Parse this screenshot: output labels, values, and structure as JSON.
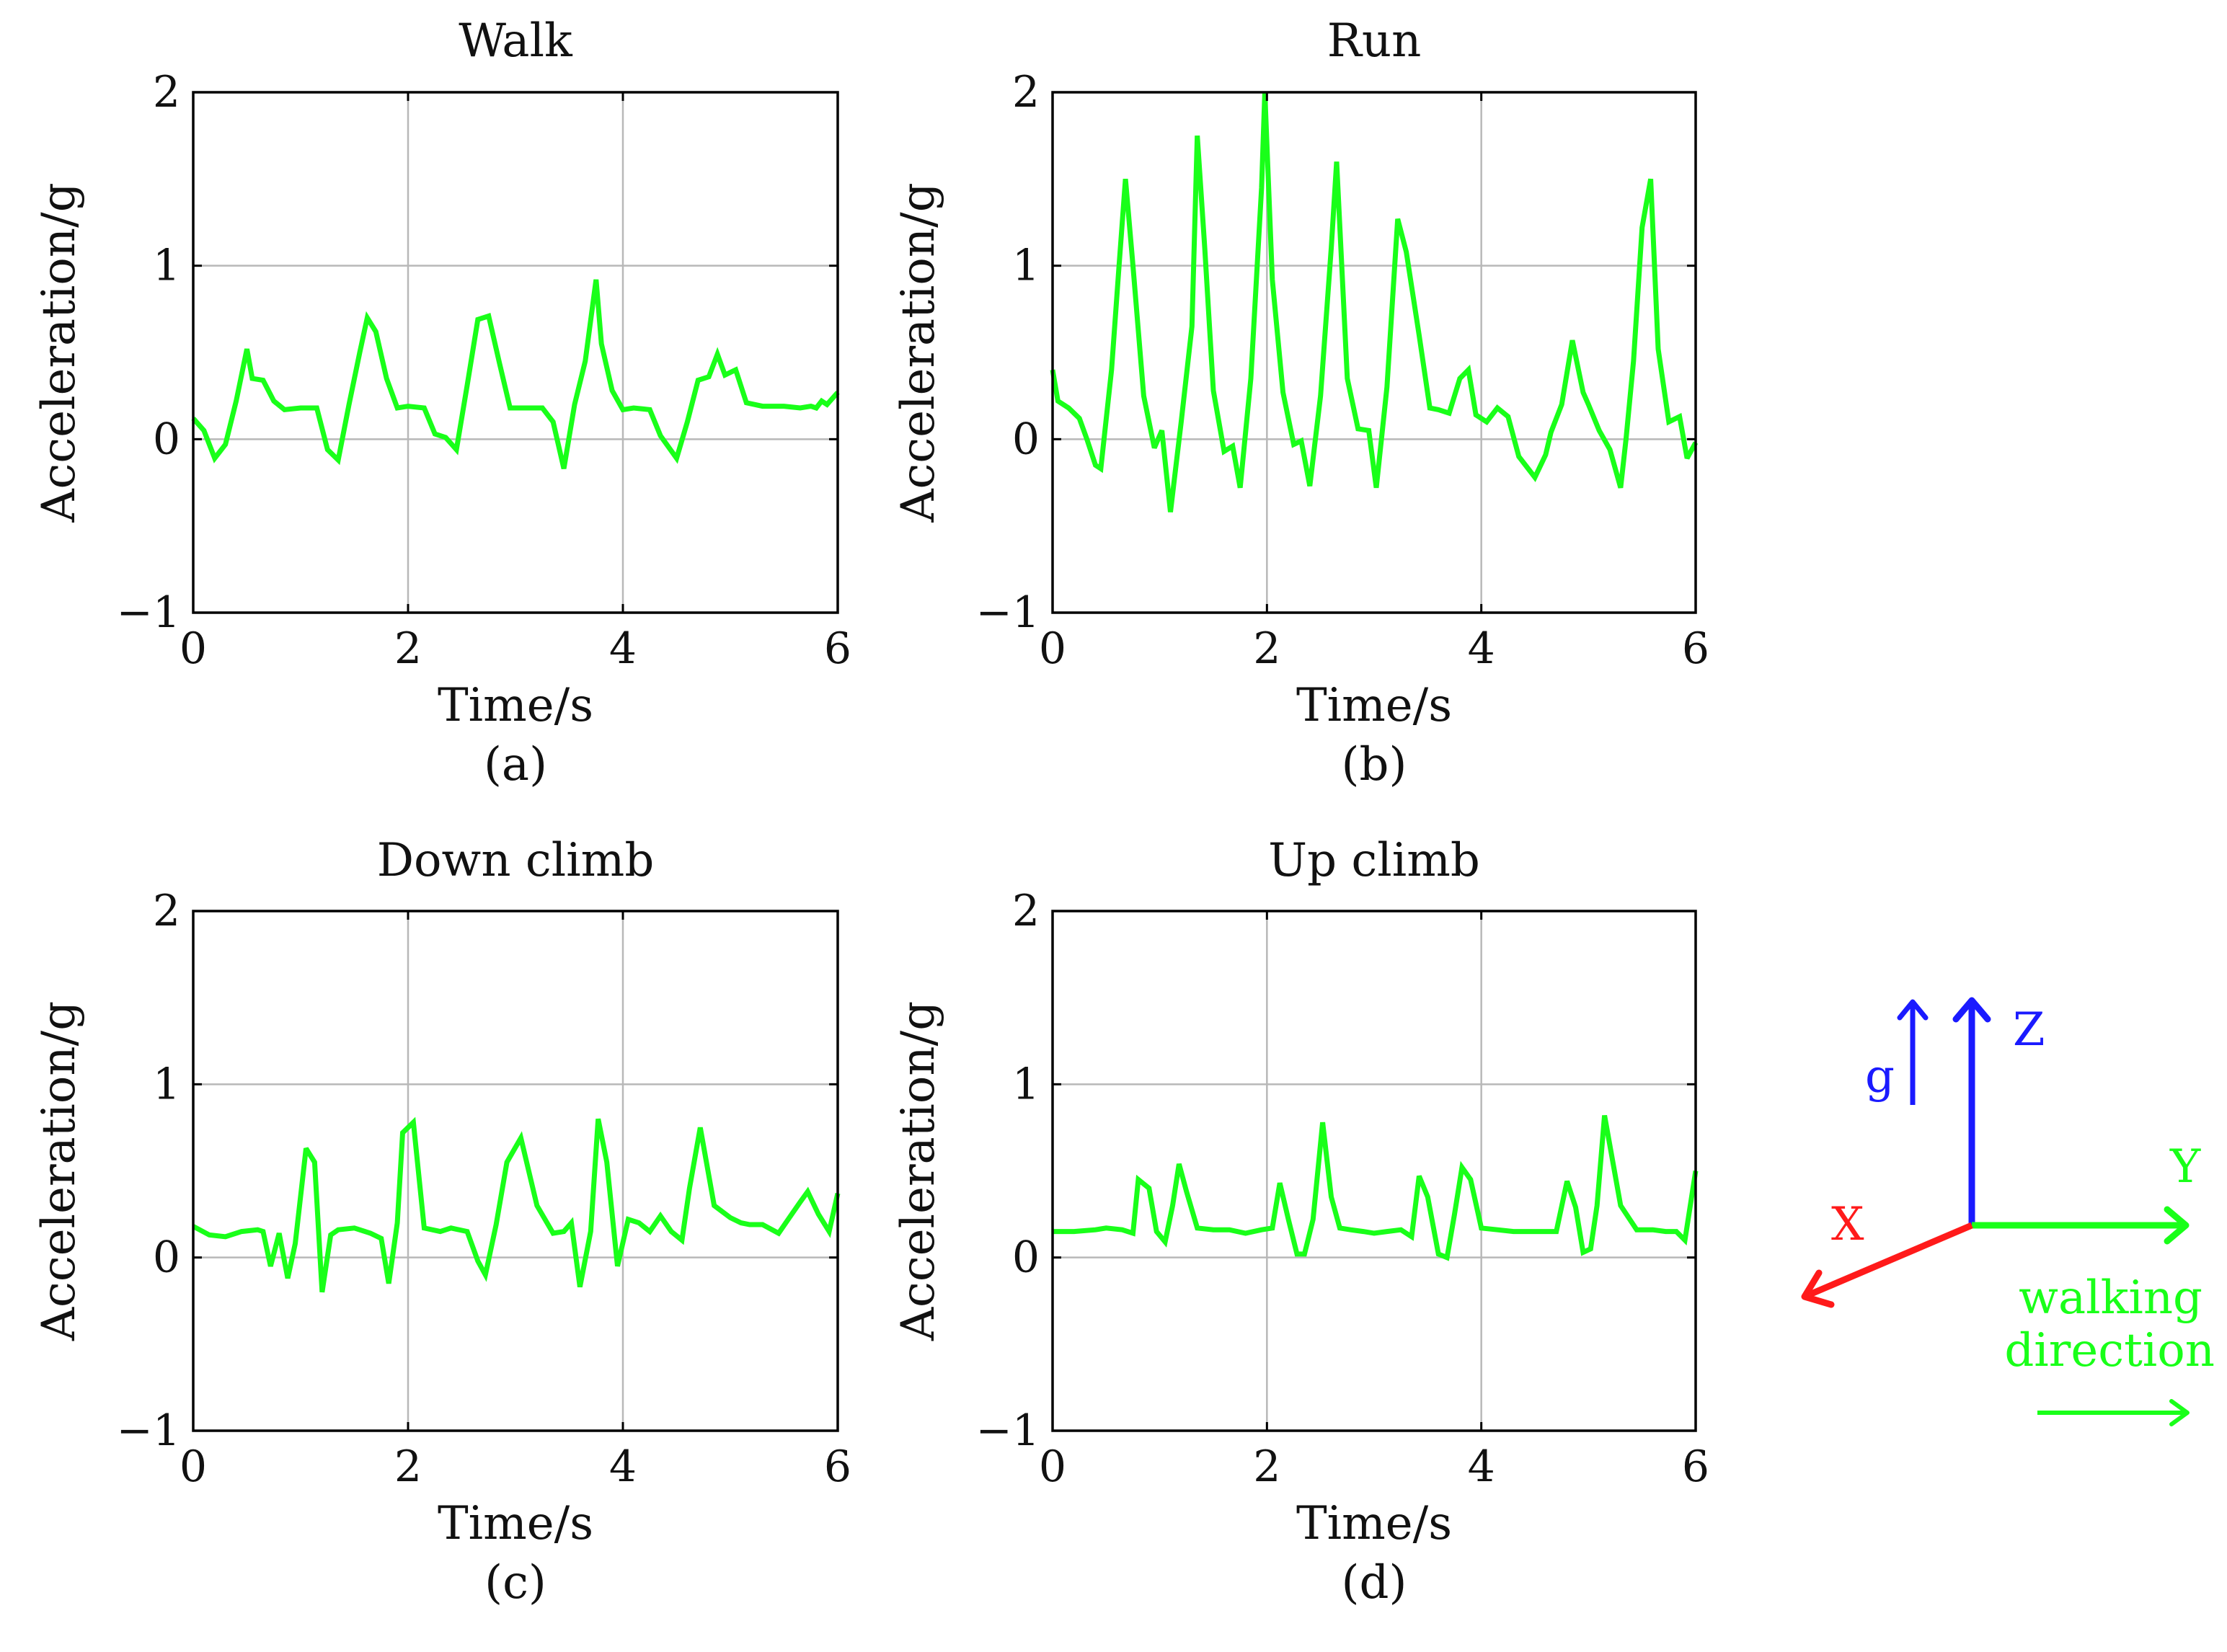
{
  "colors": {
    "series": "#19ff19",
    "grid": "#b8b8b8",
    "axis": "#000000",
    "x_axis_arrow": "#ff1a1a",
    "zg_arrow": "#1a1aff",
    "y_arrow": "#19ff19"
  },
  "chart_data": [
    {
      "type": "line",
      "title": "Walk",
      "caption": "(a)",
      "xlabel": "Time/s",
      "ylabel": "Acceleration/g",
      "xlim": [
        0,
        6
      ],
      "ylim": [
        -1,
        2
      ],
      "xticks": [
        0,
        2,
        4,
        6
      ],
      "yticks": [
        -1,
        0,
        1,
        2
      ],
      "xtick_labels": [
        "0",
        "2",
        "4",
        "6"
      ],
      "ytick_labels": [
        "−1",
        "0",
        "1",
        "2"
      ],
      "grid": true,
      "series": [
        {
          "name": "acceleration",
          "x": [
            0,
            0.1,
            0.2,
            0.3,
            0.4,
            0.5,
            0.55,
            0.65,
            0.75,
            0.85,
            1.0,
            1.15,
            1.25,
            1.35,
            1.45,
            1.55,
            1.62,
            1.7,
            1.8,
            1.9,
            2.0,
            2.15,
            2.25,
            2.35,
            2.45,
            2.55,
            2.65,
            2.75,
            2.85,
            2.95,
            3.1,
            3.25,
            3.35,
            3.45,
            3.55,
            3.65,
            3.75,
            3.8,
            3.9,
            4.0,
            4.1,
            4.25,
            4.35,
            4.5,
            4.6,
            4.7,
            4.8,
            4.88,
            4.95,
            5.05,
            5.15,
            5.3,
            5.5,
            5.65,
            5.75,
            5.8,
            5.85,
            5.9,
            6.0
          ],
          "y": [
            0.12,
            0.05,
            -0.11,
            -0.03,
            0.22,
            0.52,
            0.35,
            0.34,
            0.22,
            0.17,
            0.18,
            0.18,
            -0.06,
            -0.12,
            0.2,
            0.5,
            0.7,
            0.62,
            0.35,
            0.18,
            0.19,
            0.18,
            0.03,
            0.01,
            -0.06,
            0.31,
            0.69,
            0.71,
            0.44,
            0.18,
            0.18,
            0.18,
            0.1,
            -0.17,
            0.2,
            0.45,
            0.92,
            0.55,
            0.28,
            0.17,
            0.18,
            0.17,
            0.02,
            -0.11,
            0.1,
            0.34,
            0.36,
            0.49,
            0.37,
            0.4,
            0.21,
            0.19,
            0.19,
            0.18,
            0.19,
            0.18,
            0.22,
            0.2,
            0.27
          ]
        }
      ]
    },
    {
      "type": "line",
      "title": "Run",
      "caption": "(b)",
      "xlabel": "Time/s",
      "ylabel": "Acceleration/g",
      "xlim": [
        0,
        6
      ],
      "ylim": [
        -1,
        2
      ],
      "xticks": [
        0,
        2,
        4,
        6
      ],
      "yticks": [
        -1,
        0,
        1,
        2
      ],
      "xtick_labels": [
        "0",
        "2",
        "4",
        "6"
      ],
      "ytick_labels": [
        "−1",
        "0",
        "1",
        "2"
      ],
      "grid": true,
      "series": [
        {
          "name": "acceleration",
          "x": [
            0,
            0.05,
            0.15,
            0.25,
            0.32,
            0.4,
            0.45,
            0.55,
            0.62,
            0.68,
            0.75,
            0.85,
            0.95,
            1.02,
            1.1,
            1.2,
            1.3,
            1.35,
            1.42,
            1.5,
            1.6,
            1.68,
            1.75,
            1.85,
            1.95,
            1.98,
            2.05,
            2.15,
            2.25,
            2.32,
            2.4,
            2.5,
            2.6,
            2.65,
            2.75,
            2.85,
            2.95,
            3.02,
            3.12,
            3.22,
            3.3,
            3.42,
            3.52,
            3.6,
            3.7,
            3.8,
            3.88,
            3.95,
            4.05,
            4.15,
            4.25,
            4.35,
            4.5,
            4.6,
            4.65,
            4.75,
            4.85,
            4.95,
            5.0,
            5.1,
            5.2,
            5.3,
            5.35,
            5.42,
            5.5,
            5.58,
            5.65,
            5.75,
            5.85,
            5.92,
            6.0
          ],
          "y": [
            0.4,
            0.22,
            0.18,
            0.12,
            0.0,
            -0.15,
            -0.17,
            0.4,
            1.0,
            1.5,
            1.0,
            0.25,
            -0.05,
            0.05,
            -0.42,
            0.1,
            0.65,
            1.75,
            1.1,
            0.28,
            -0.07,
            -0.04,
            -0.28,
            0.35,
            1.45,
            2.0,
            0.92,
            0.27,
            -0.03,
            -0.01,
            -0.27,
            0.25,
            1.1,
            1.6,
            0.35,
            0.06,
            0.05,
            -0.28,
            0.3,
            1.27,
            1.08,
            0.6,
            0.18,
            0.17,
            0.15,
            0.35,
            0.4,
            0.14,
            0.1,
            0.18,
            0.13,
            -0.1,
            -0.22,
            -0.09,
            0.04,
            0.2,
            0.57,
            0.27,
            0.2,
            0.05,
            -0.06,
            -0.28,
            0.0,
            0.45,
            1.22,
            1.5,
            0.52,
            0.1,
            0.13,
            -0.11,
            -0.02
          ]
        }
      ]
    },
    {
      "type": "line",
      "title": "Down climb",
      "caption": "(c)",
      "xlabel": "Time/s",
      "ylabel": "Acceleration/g",
      "xlim": [
        0,
        6
      ],
      "ylim": [
        -1,
        2
      ],
      "xticks": [
        0,
        2,
        4,
        6
      ],
      "yticks": [
        -1,
        0,
        1,
        2
      ],
      "xtick_labels": [
        "0",
        "2",
        "4",
        "6"
      ],
      "ytick_labels": [
        "−1",
        "0",
        "1",
        "2"
      ],
      "grid": true,
      "series": [
        {
          "name": "acceleration",
          "x": [
            0,
            0.15,
            0.3,
            0.45,
            0.6,
            0.65,
            0.72,
            0.8,
            0.88,
            0.95,
            1.05,
            1.13,
            1.2,
            1.28,
            1.35,
            1.5,
            1.65,
            1.75,
            1.82,
            1.9,
            1.95,
            2.05,
            2.15,
            2.3,
            2.4,
            2.55,
            2.65,
            2.72,
            2.82,
            2.92,
            3.05,
            3.2,
            3.35,
            3.45,
            3.52,
            3.6,
            3.7,
            3.77,
            3.85,
            3.95,
            4.05,
            4.15,
            4.25,
            4.35,
            4.45,
            4.55,
            4.62,
            4.72,
            4.85,
            5.0,
            5.1,
            5.18,
            5.3,
            5.45,
            5.55,
            5.65,
            5.72,
            5.82,
            5.92,
            6.0
          ],
          "y": [
            0.18,
            0.13,
            0.12,
            0.15,
            0.16,
            0.15,
            -0.05,
            0.14,
            -0.12,
            0.08,
            0.63,
            0.55,
            -0.2,
            0.13,
            0.16,
            0.17,
            0.14,
            0.11,
            -0.15,
            0.2,
            0.72,
            0.78,
            0.17,
            0.15,
            0.17,
            0.15,
            -0.02,
            -0.1,
            0.19,
            0.55,
            0.69,
            0.3,
            0.14,
            0.15,
            0.2,
            -0.17,
            0.15,
            0.8,
            0.55,
            -0.05,
            0.22,
            0.2,
            0.15,
            0.24,
            0.15,
            0.1,
            0.4,
            0.75,
            0.3,
            0.23,
            0.2,
            0.19,
            0.19,
            0.14,
            0.23,
            0.32,
            0.38,
            0.25,
            0.15,
            0.37
          ]
        }
      ]
    },
    {
      "type": "line",
      "title": "Up climb",
      "caption": "(d)",
      "xlabel": "Time/s",
      "ylabel": "Acceleration/g",
      "xlim": [
        0,
        6
      ],
      "ylim": [
        -1,
        2
      ],
      "xticks": [
        0,
        2,
        4,
        6
      ],
      "yticks": [
        -1,
        0,
        1,
        2
      ],
      "xtick_labels": [
        "0",
        "2",
        "4",
        "6"
      ],
      "ytick_labels": [
        "−1",
        "0",
        "1",
        "2"
      ],
      "grid": true,
      "series": [
        {
          "name": "acceleration",
          "x": [
            0,
            0.2,
            0.4,
            0.5,
            0.65,
            0.75,
            0.8,
            0.9,
            0.97,
            1.05,
            1.12,
            1.18,
            1.25,
            1.35,
            1.5,
            1.65,
            1.8,
            1.95,
            2.05,
            2.12,
            2.2,
            2.28,
            2.35,
            2.43,
            2.52,
            2.6,
            2.68,
            2.78,
            2.9,
            3.0,
            3.12,
            3.25,
            3.35,
            3.42,
            3.5,
            3.6,
            3.68,
            3.75,
            3.82,
            3.9,
            4.0,
            4.15,
            4.3,
            4.45,
            4.6,
            4.7,
            4.8,
            4.88,
            4.95,
            5.02,
            5.08,
            5.15,
            5.3,
            5.45,
            5.6,
            5.72,
            5.82,
            5.9,
            6.0
          ],
          "y": [
            0.15,
            0.15,
            0.16,
            0.17,
            0.16,
            0.14,
            0.45,
            0.4,
            0.15,
            0.09,
            0.3,
            0.54,
            0.38,
            0.17,
            0.16,
            0.16,
            0.14,
            0.16,
            0.17,
            0.43,
            0.22,
            0.02,
            0.02,
            0.22,
            0.78,
            0.35,
            0.17,
            0.16,
            0.15,
            0.14,
            0.15,
            0.16,
            0.12,
            0.47,
            0.35,
            0.02,
            0.0,
            0.25,
            0.52,
            0.45,
            0.17,
            0.16,
            0.15,
            0.15,
            0.15,
            0.15,
            0.44,
            0.29,
            0.03,
            0.05,
            0.3,
            0.82,
            0.3,
            0.16,
            0.16,
            0.15,
            0.15,
            0.1,
            0.5
          ]
        }
      ]
    }
  ],
  "legend": {
    "g_label": "g",
    "z_label": "Z",
    "y_label": "Y",
    "x_label": "X",
    "walking_label_line1": "walking",
    "walking_label_line2": "direction"
  }
}
